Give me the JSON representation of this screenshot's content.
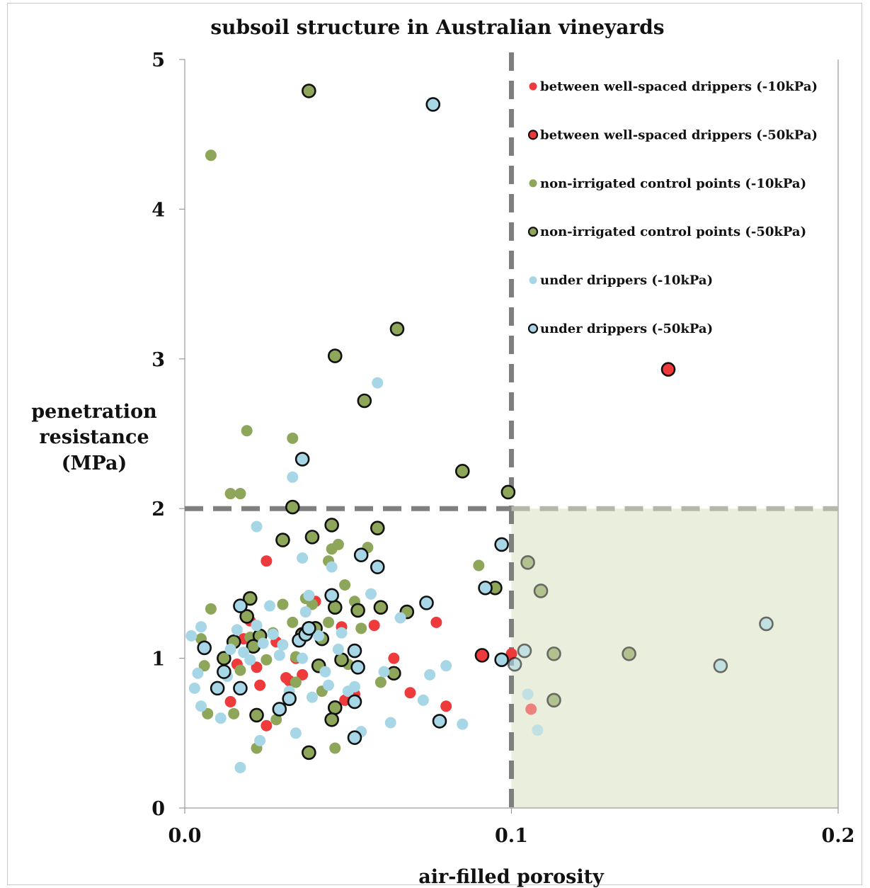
{
  "chart_data": {
    "type": "scatter",
    "title": "subsoil structure in Australian vineyards",
    "xlabel": "air-filled porosity",
    "ylabel_lines": [
      "penetration",
      "resistance",
      "(MPa)"
    ],
    "xlim": [
      0,
      0.2
    ],
    "ylim": [
      0,
      5
    ],
    "xticks": [
      "0.0",
      "0.1",
      "0.2"
    ],
    "xtick_values": [
      0,
      0.1,
      0.2
    ],
    "yticks": [
      "0",
      "1",
      "2",
      "3",
      "4",
      "5"
    ],
    "ytick_values": [
      0,
      1,
      2,
      3,
      4,
      5
    ],
    "grid": false,
    "legend_position": "top-right",
    "thresholds": {
      "x": 0.1,
      "y": 2
    },
    "shaded_region": {
      "x": [
        0.1,
        0.2
      ],
      "y": [
        0,
        2
      ],
      "color": "#e9eedd"
    },
    "series": [
      {
        "name": "between well-spaced drippers (-10kPa)",
        "color": "#ee3a3a",
        "outlined": false,
        "points": [
          [
            0.025,
            1.65
          ],
          [
            0.014,
            0.71
          ],
          [
            0.016,
            0.96
          ],
          [
            0.018,
            1.13
          ],
          [
            0.02,
            1.25
          ],
          [
            0.022,
            0.94
          ],
          [
            0.023,
            0.82
          ],
          [
            0.025,
            0.55
          ],
          [
            0.028,
            1.11
          ],
          [
            0.031,
            0.87
          ],
          [
            0.032,
            0.85
          ],
          [
            0.034,
            1.0
          ],
          [
            0.036,
            0.89
          ],
          [
            0.038,
            1.18
          ],
          [
            0.04,
            1.38
          ],
          [
            0.048,
            1.21
          ],
          [
            0.049,
            0.72
          ],
          [
            0.052,
            0.76
          ],
          [
            0.058,
            1.22
          ],
          [
            0.064,
            1.0
          ],
          [
            0.069,
            0.77
          ],
          [
            0.077,
            1.24
          ],
          [
            0.08,
            0.68
          ],
          [
            0.1,
            1.03
          ],
          [
            0.106,
            0.66
          ]
        ]
      },
      {
        "name": "between well-spaced drippers (-50kPa)",
        "color": "#ee3a3a",
        "outlined": true,
        "points": [
          [
            0.148,
            2.93
          ],
          [
            0.091,
            1.02
          ]
        ]
      },
      {
        "name": "non-irrigated control points (-10kPa)",
        "color": "#8da65a",
        "outlined": false,
        "points": [
          [
            0.008,
            4.36
          ],
          [
            0.019,
            2.52
          ],
          [
            0.014,
            2.1
          ],
          [
            0.017,
            2.1
          ],
          [
            0.033,
            2.47
          ],
          [
            0.008,
            1.33
          ],
          [
            0.005,
            1.13
          ],
          [
            0.006,
            0.95
          ],
          [
            0.007,
            0.63
          ],
          [
            0.012,
            1.0
          ],
          [
            0.015,
            0.63
          ],
          [
            0.017,
            0.92
          ],
          [
            0.02,
            1.14
          ],
          [
            0.025,
            0.99
          ],
          [
            0.027,
            1.17
          ],
          [
            0.03,
            1.36
          ],
          [
            0.033,
            1.24
          ],
          [
            0.034,
            1.01
          ],
          [
            0.037,
            1.4
          ],
          [
            0.039,
            1.36
          ],
          [
            0.042,
            0.78
          ],
          [
            0.044,
            1.24
          ],
          [
            0.045,
            1.73
          ],
          [
            0.047,
            1.76
          ],
          [
            0.049,
            1.49
          ],
          [
            0.05,
            0.96
          ],
          [
            0.052,
            1.38
          ],
          [
            0.054,
            1.2
          ],
          [
            0.056,
            1.74
          ],
          [
            0.06,
            0.84
          ],
          [
            0.028,
            0.59
          ],
          [
            0.022,
            0.4
          ],
          [
            0.046,
            0.4
          ],
          [
            0.044,
            1.65
          ],
          [
            0.09,
            1.62
          ],
          [
            0.034,
            0.84
          ]
        ]
      },
      {
        "name": "non-irrigated control points (-50kPa)",
        "color": "#8da65a",
        "outlined": true,
        "points": [
          [
            0.038,
            4.79
          ],
          [
            0.046,
            3.02
          ],
          [
            0.065,
            3.2
          ],
          [
            0.055,
            2.72
          ],
          [
            0.085,
            2.25
          ],
          [
            0.099,
            2.11
          ],
          [
            0.033,
            2.01
          ],
          [
            0.045,
            1.89
          ],
          [
            0.059,
            1.87
          ],
          [
            0.039,
            1.81
          ],
          [
            0.03,
            1.79
          ],
          [
            0.02,
            1.4
          ],
          [
            0.019,
            1.28
          ],
          [
            0.023,
            1.15
          ],
          [
            0.021,
            1.08
          ],
          [
            0.015,
            1.11
          ],
          [
            0.012,
            1.0
          ],
          [
            0.036,
            1.16
          ],
          [
            0.04,
            1.2
          ],
          [
            0.042,
            1.13
          ],
          [
            0.046,
            1.34
          ],
          [
            0.041,
            0.95
          ],
          [
            0.048,
            0.99
          ],
          [
            0.053,
            1.32
          ],
          [
            0.06,
            1.34
          ],
          [
            0.068,
            1.31
          ],
          [
            0.064,
            0.9
          ],
          [
            0.046,
            0.67
          ],
          [
            0.045,
            0.59
          ],
          [
            0.022,
            0.62
          ],
          [
            0.038,
            0.37
          ],
          [
            0.095,
            1.47
          ],
          [
            0.109,
            1.45
          ],
          [
            0.113,
            1.03
          ],
          [
            0.136,
            1.03
          ],
          [
            0.113,
            0.72
          ],
          [
            0.105,
            1.64
          ]
        ]
      },
      {
        "name": "under drippers (-10kPa)",
        "color": "#a7d7e6",
        "outlined": false,
        "points": [
          [
            0.059,
            2.84
          ],
          [
            0.033,
            2.21
          ],
          [
            0.022,
            1.88
          ],
          [
            0.036,
            1.67
          ],
          [
            0.045,
            1.61
          ],
          [
            0.002,
            1.15
          ],
          [
            0.005,
            1.21
          ],
          [
            0.003,
            0.8
          ],
          [
            0.004,
            0.9
          ],
          [
            0.005,
            0.68
          ],
          [
            0.011,
            0.6
          ],
          [
            0.013,
            0.88
          ],
          [
            0.014,
            1.06
          ],
          [
            0.016,
            1.19
          ],
          [
            0.018,
            1.04
          ],
          [
            0.02,
            0.99
          ],
          [
            0.022,
            1.22
          ],
          [
            0.024,
            1.1
          ],
          [
            0.026,
            1.35
          ],
          [
            0.027,
            1.16
          ],
          [
            0.029,
            1.02
          ],
          [
            0.03,
            1.09
          ],
          [
            0.032,
            0.78
          ],
          [
            0.034,
            0.5
          ],
          [
            0.036,
            1.0
          ],
          [
            0.037,
            1.31
          ],
          [
            0.039,
            0.74
          ],
          [
            0.041,
            1.15
          ],
          [
            0.043,
            0.91
          ],
          [
            0.044,
            0.82
          ],
          [
            0.047,
            1.06
          ],
          [
            0.05,
            0.78
          ],
          [
            0.052,
            0.81
          ],
          [
            0.054,
            0.51
          ],
          [
            0.057,
            1.43
          ],
          [
            0.061,
            0.91
          ],
          [
            0.063,
            0.57
          ],
          [
            0.066,
            1.27
          ],
          [
            0.073,
            0.72
          ],
          [
            0.075,
            0.89
          ],
          [
            0.08,
            0.95
          ],
          [
            0.085,
            0.56
          ],
          [
            0.017,
            0.27
          ],
          [
            0.023,
            0.45
          ],
          [
            0.105,
            0.76
          ],
          [
            0.108,
            0.52
          ],
          [
            0.038,
            1.42
          ],
          [
            0.048,
            1.17
          ]
        ]
      },
      {
        "name": "under drippers (-50kPa)",
        "color": "#a7d7e6",
        "outlined": true,
        "points": [
          [
            0.076,
            4.7
          ],
          [
            0.036,
            2.33
          ],
          [
            0.054,
            1.69
          ],
          [
            0.059,
            1.61
          ],
          [
            0.074,
            1.37
          ],
          [
            0.097,
            1.76
          ],
          [
            0.092,
            1.47
          ],
          [
            0.017,
            1.35
          ],
          [
            0.006,
            1.07
          ],
          [
            0.012,
            0.91
          ],
          [
            0.01,
            0.8
          ],
          [
            0.017,
            0.8
          ],
          [
            0.029,
            0.66
          ],
          [
            0.032,
            0.73
          ],
          [
            0.035,
            1.12
          ],
          [
            0.037,
            1.16
          ],
          [
            0.045,
            1.42
          ],
          [
            0.052,
            1.05
          ],
          [
            0.053,
            0.94
          ],
          [
            0.052,
            0.71
          ],
          [
            0.052,
            0.47
          ],
          [
            0.078,
            0.58
          ],
          [
            0.097,
            0.99
          ],
          [
            0.101,
            0.96
          ],
          [
            0.104,
            1.05
          ],
          [
            0.164,
            0.95
          ],
          [
            0.178,
            1.23
          ],
          [
            0.038,
            1.2
          ]
        ]
      }
    ]
  }
}
